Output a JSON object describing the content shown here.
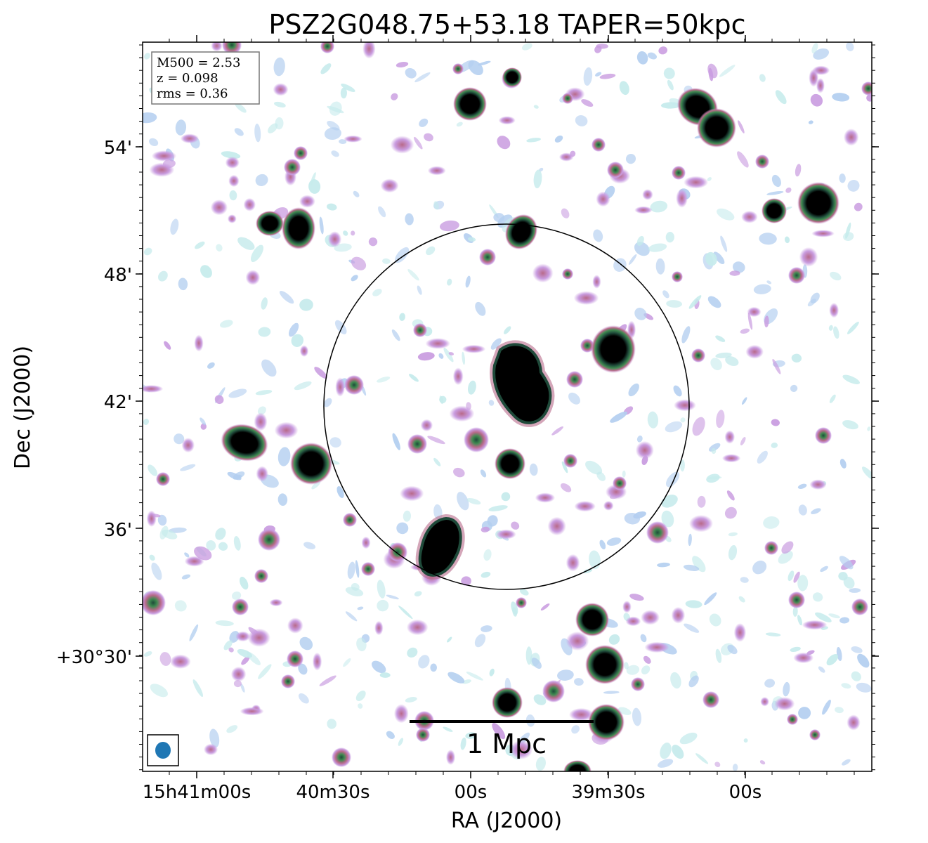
{
  "title": "PSZ2G048.75+53.18 TAPER=50kpc",
  "axes": {
    "xlabel": "RA (J2000)",
    "ylabel": "Dec (J2000)",
    "xticks": [
      "15h41m00s",
      "40m30s",
      "00s",
      "39m30s",
      "00s"
    ],
    "yticks": [
      "54'",
      "48'",
      "42'",
      "36'",
      "+30°30'"
    ]
  },
  "info_box": {
    "line1": "M500 = 2.53",
    "line2": "z = 0.098",
    "line3": "rms = 0.36"
  },
  "scalebar": {
    "label": "1 Mpc"
  },
  "colors": {
    "source_core": "#000000",
    "ring_dark": "#1f4a3a",
    "ring_green": "#3f8a50",
    "ring_mauve": "#b86a8a",
    "halo_violet": "#c99ce0",
    "noise_blue": "#b4cff0",
    "noise_cyan": "#c6ebec",
    "beam": "#1f77b4",
    "circle": "#000000"
  }
}
